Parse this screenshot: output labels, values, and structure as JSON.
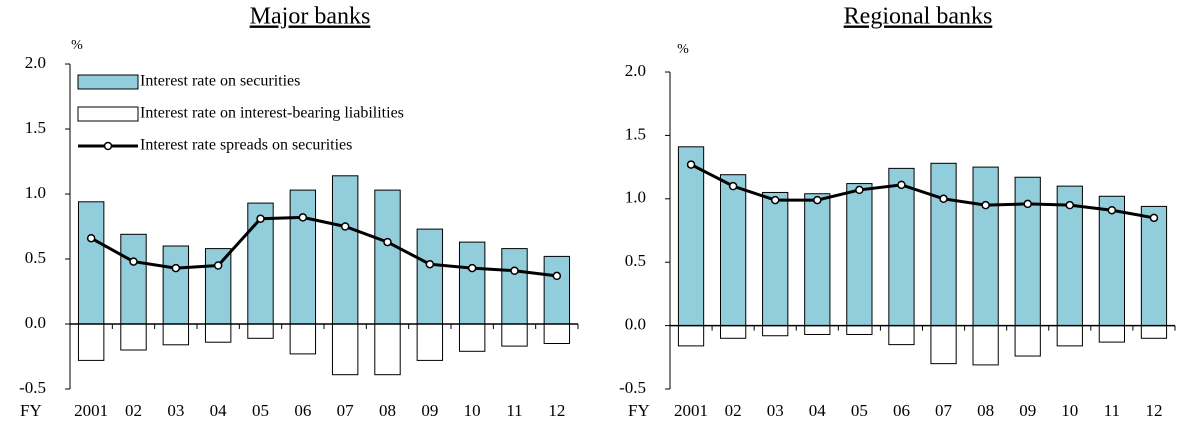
{
  "chart_data": [
    {
      "type": "bar",
      "title": "Major banks",
      "unit": "%",
      "x_prefix": "FY",
      "categories": [
        "2001",
        "02",
        "03",
        "04",
        "05",
        "06",
        "07",
        "08",
        "09",
        "10",
        "11",
        "12"
      ],
      "series": [
        {
          "name": "Interest rate on securities",
          "kind": "bar",
          "color": "#92cddc",
          "values": [
            0.94,
            0.69,
            0.6,
            0.58,
            0.93,
            1.03,
            1.14,
            1.03,
            0.73,
            0.63,
            0.58,
            0.52
          ]
        },
        {
          "name": "Interest rate on interest-bearing liabilities",
          "kind": "bar",
          "color": "#ffffff",
          "values": [
            -0.28,
            -0.2,
            -0.16,
            -0.14,
            -0.11,
            -0.23,
            -0.39,
            -0.39,
            -0.28,
            -0.21,
            -0.17,
            -0.15
          ]
        },
        {
          "name": "Interest rate spreads on securities",
          "kind": "line",
          "color": "#000000",
          "values": [
            0.66,
            0.48,
            0.43,
            0.45,
            0.81,
            0.82,
            0.75,
            0.63,
            0.46,
            0.43,
            0.41,
            0.37
          ]
        }
      ],
      "ylim": [
        -0.5,
        2.0
      ],
      "yticks": [
        -0.5,
        {
          "value": 0,
          "label": "0.0"
        },
        0.5,
        {
          "value": 1,
          "label": "1.0"
        },
        1.5,
        {
          "value": 2,
          "label": "2.0"
        }
      ],
      "legend": "upper left"
    },
    {
      "type": "bar",
      "title": "Regional banks",
      "unit": "%",
      "x_prefix": "FY",
      "categories": [
        "2001",
        "02",
        "03",
        "04",
        "05",
        "06",
        "07",
        "08",
        "09",
        "10",
        "11",
        "12"
      ],
      "series": [
        {
          "kind": "bar",
          "color": "#92cddc",
          "values": [
            1.41,
            1.19,
            1.05,
            1.04,
            1.12,
            1.24,
            1.28,
            1.25,
            1.17,
            1.1,
            1.02,
            0.94
          ]
        },
        {
          "kind": "bar",
          "color": "#ffffff",
          "values": [
            -0.16,
            -0.1,
            -0.08,
            -0.07,
            -0.07,
            -0.15,
            -0.3,
            -0.31,
            -0.24,
            -0.16,
            -0.13,
            -0.1
          ]
        },
        {
          "kind": "line",
          "color": "#000000",
          "values": [
            1.27,
            1.1,
            0.99,
            0.99,
            1.07,
            1.11,
            1.0,
            0.95,
            0.96,
            0.95,
            0.91,
            0.85
          ]
        }
      ],
      "ylim": [
        -0.5,
        2.0
      ],
      "yticks": [
        -0.5,
        {
          "value": 0,
          "label": "0.0"
        },
        0.5,
        {
          "value": 1,
          "label": "1.0"
        },
        1.5,
        {
          "value": 2,
          "label": "2.0"
        }
      ]
    }
  ]
}
